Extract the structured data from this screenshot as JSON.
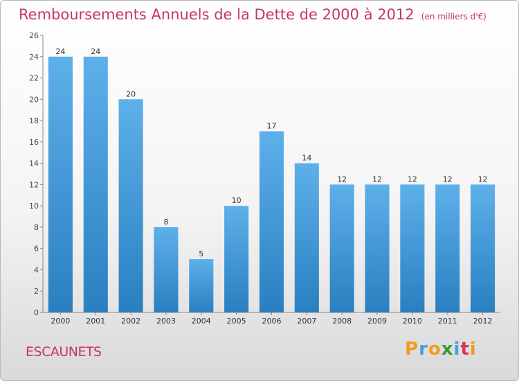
{
  "chart_data": {
    "type": "bar",
    "title": "Remboursements Annuels de la Dette de 2000 à 2012",
    "unit": "(en milliers d'€)",
    "categories": [
      "2000",
      "2001",
      "2002",
      "2003",
      "2004",
      "2005",
      "2006",
      "2007",
      "2008",
      "2009",
      "2010",
      "2011",
      "2012"
    ],
    "values": [
      24,
      24,
      20,
      8,
      5,
      10,
      17,
      14,
      12,
      12,
      12,
      12,
      12
    ],
    "ylim": [
      0,
      26
    ],
    "yticks": [
      0,
      2,
      4,
      6,
      8,
      10,
      12,
      14,
      16,
      18,
      20,
      22,
      24,
      26
    ],
    "xlabel": "",
    "ylabel": "",
    "grid": false,
    "bar_color": "#2a7fc0",
    "bar_color_light": "#5eb0ea"
  },
  "commune": "ESCAUNETS",
  "logo": {
    "letters": [
      "P",
      "r",
      "o",
      "x",
      "i",
      "t",
      "i"
    ],
    "colors": [
      "#f39a1e",
      "#4a9fd8",
      "#f39a1e",
      "#3a9a3a",
      "#4a9fd8",
      "#d8365a",
      "#f39a1e"
    ]
  }
}
